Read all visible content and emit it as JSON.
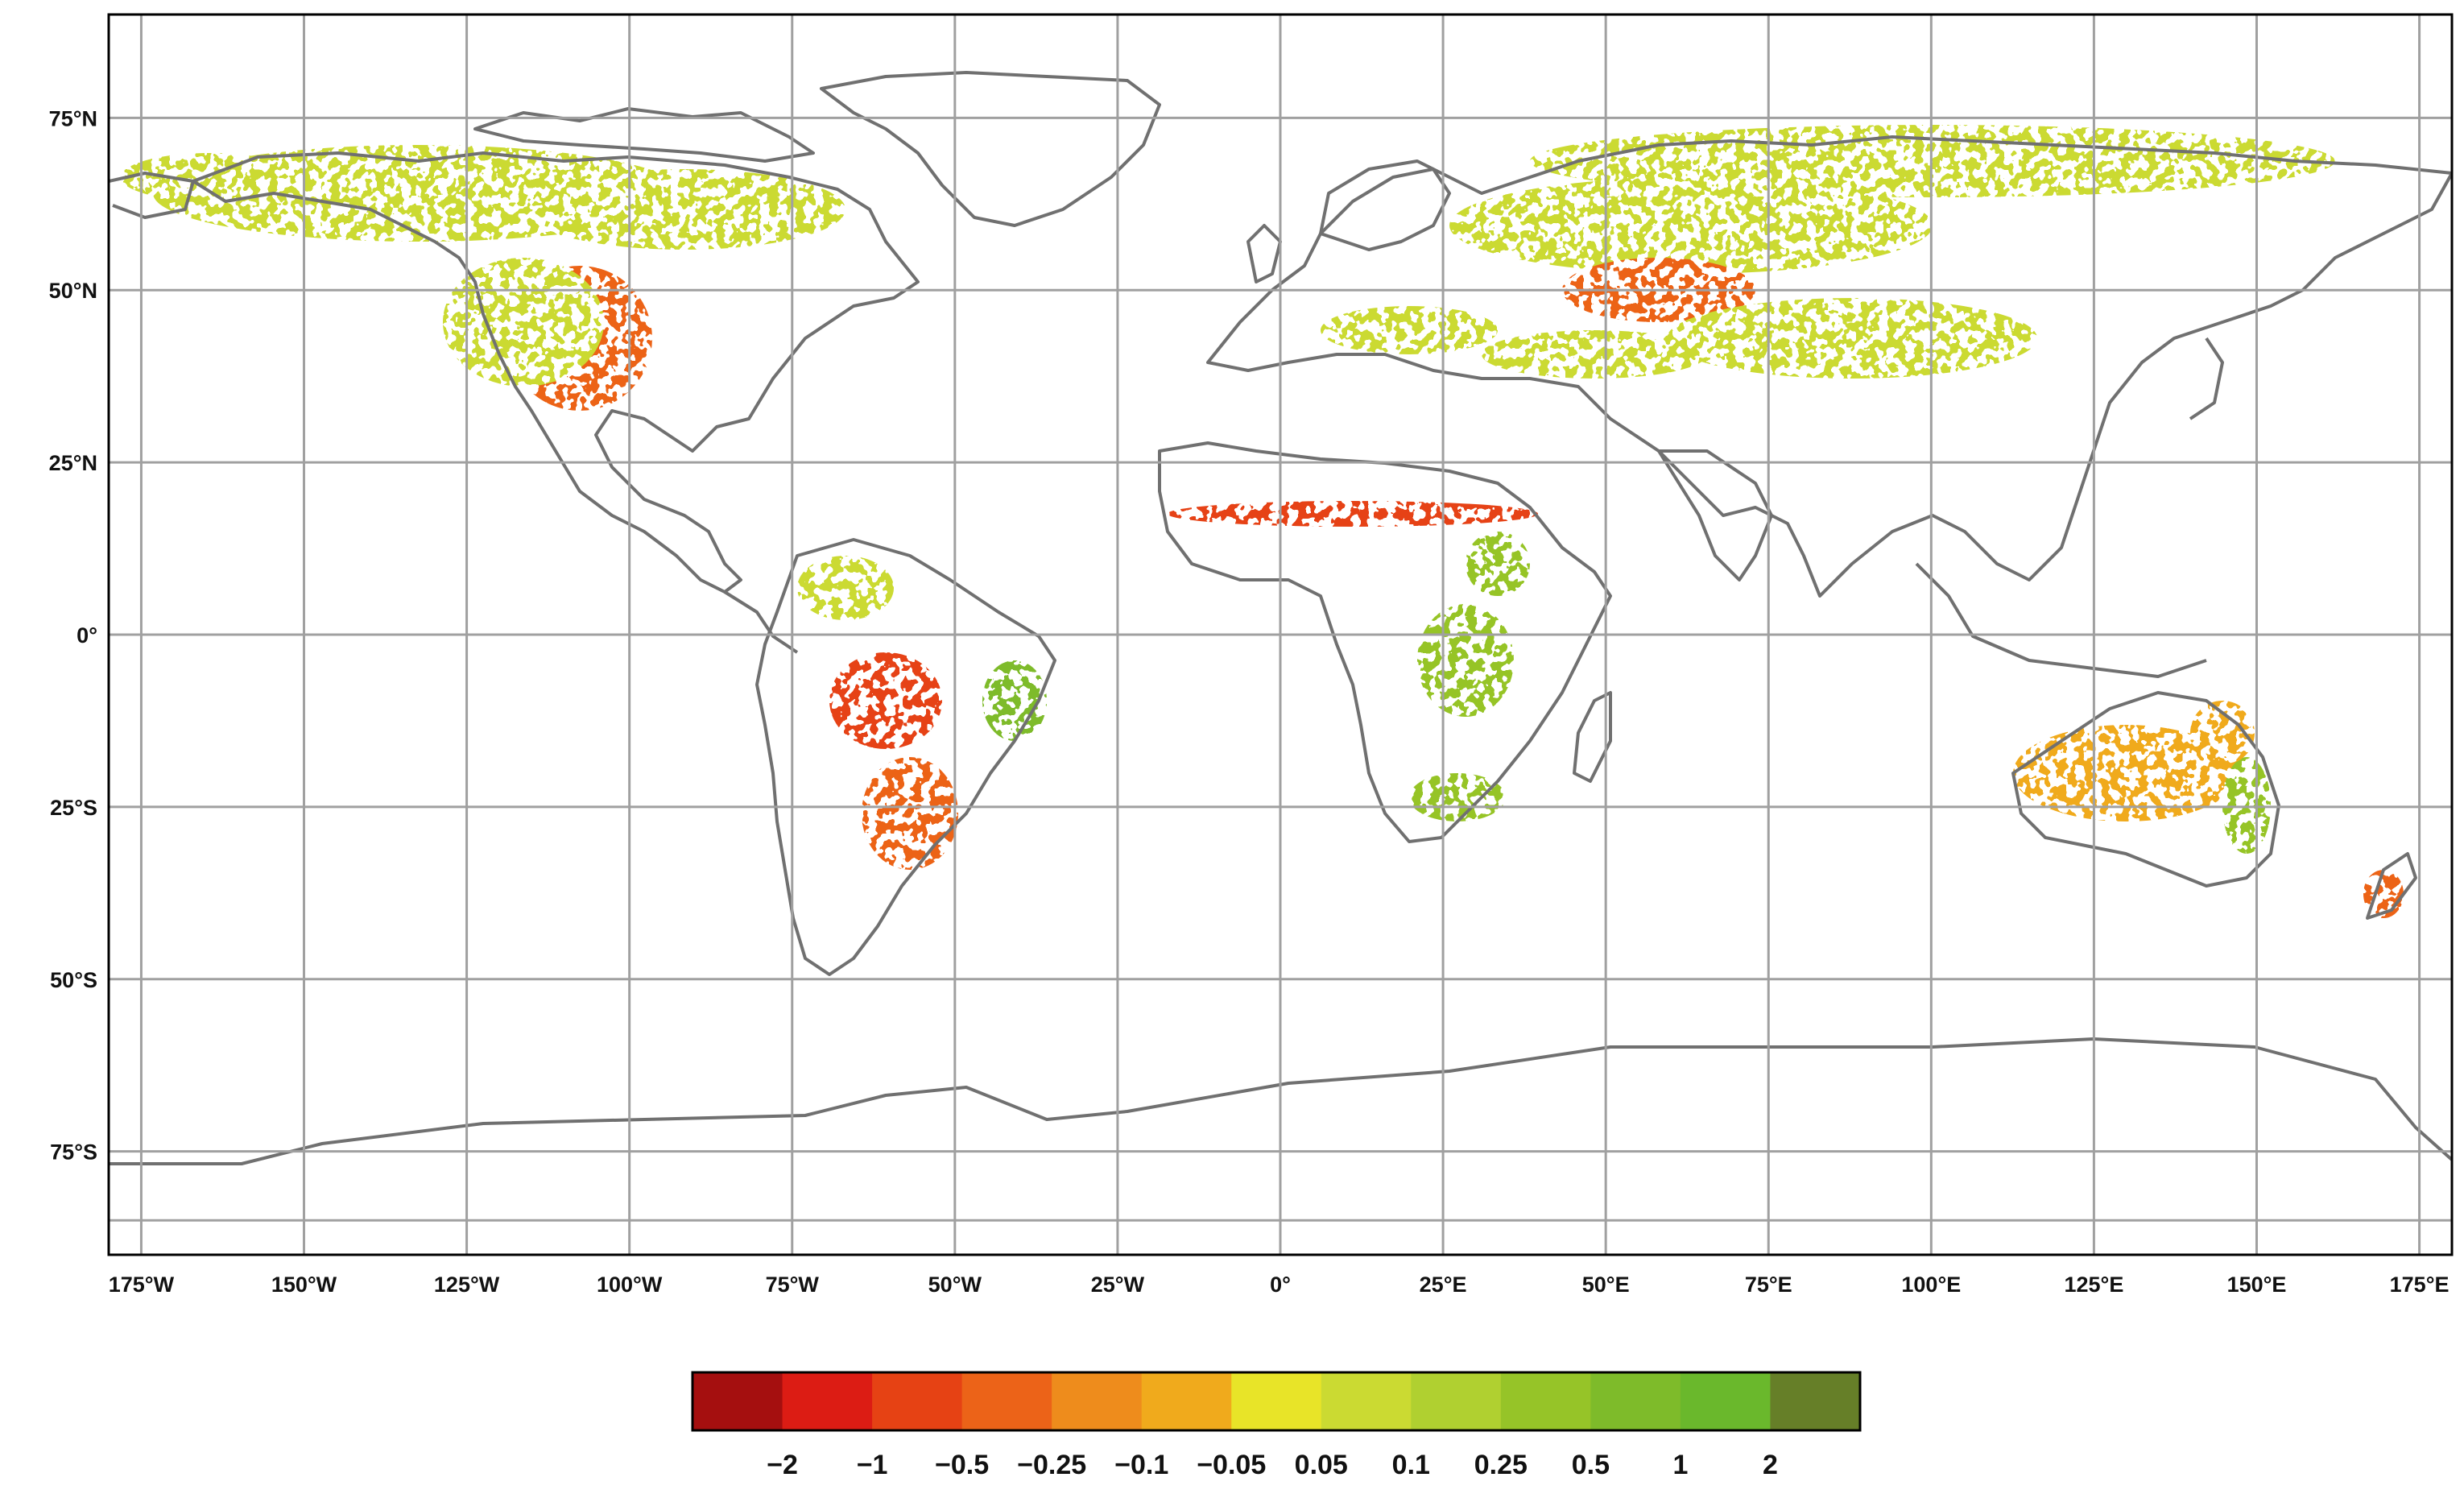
{
  "map": {
    "lat_ticks": [
      {
        "deg": 75,
        "label": "75°N"
      },
      {
        "deg": 50,
        "label": "50°N"
      },
      {
        "deg": 25,
        "label": "25°N"
      },
      {
        "deg": 0,
        "label": "0°"
      },
      {
        "deg": -25,
        "label": "25°S"
      },
      {
        "deg": -50,
        "label": "50°S"
      },
      {
        "deg": -75,
        "label": "75°S"
      }
    ],
    "lon_ticks": [
      {
        "deg": -175,
        "label": "175°W"
      },
      {
        "deg": -150,
        "label": "150°W"
      },
      {
        "deg": -125,
        "label": "125°W"
      },
      {
        "deg": -100,
        "label": "100°W"
      },
      {
        "deg": -75,
        "label": "75°W"
      },
      {
        "deg": -50,
        "label": "50°W"
      },
      {
        "deg": -25,
        "label": "25°W"
      },
      {
        "deg": 0,
        "label": "0°"
      },
      {
        "deg": 25,
        "label": "25°E"
      },
      {
        "deg": 50,
        "label": "50°E"
      },
      {
        "deg": 75,
        "label": "75°E"
      },
      {
        "deg": 100,
        "label": "100°E"
      },
      {
        "deg": 125,
        "label": "125°E"
      },
      {
        "deg": 150,
        "label": "150°E"
      },
      {
        "deg": 175,
        "label": "175°E"
      }
    ],
    "lon_range": [
      -180,
      180
    ],
    "lat_range": [
      -90,
      90
    ],
    "gridline_color": "#a0a0a0",
    "coastline_color": "#707070"
  },
  "colorbar": {
    "labels": [
      "−2",
      "−1",
      "−0.5",
      "−0.25",
      "−0.1",
      "−0.05",
      "0.05",
      "0.1",
      "0.25",
      "0.5",
      "1",
      "2"
    ],
    "colors": [
      "#a50f0f",
      "#dc1c14",
      "#e64214",
      "#ec6318",
      "#ee8c1c",
      "#f0aa1c",
      "#e8e428",
      "#cbda32",
      "#b0d030",
      "#96c428",
      "#7ebb2a",
      "#6ab82c",
      "#667f28"
    ]
  },
  "regions": [
    {
      "name": "north-america-boreal",
      "color": "#cbda32"
    },
    {
      "name": "us-great-plains",
      "color": "#ec6318"
    },
    {
      "name": "amazon-south",
      "color": "#e64214"
    },
    {
      "name": "east-brazil",
      "color": "#7ebb2a"
    },
    {
      "name": "sahel",
      "color": "#e64214"
    },
    {
      "name": "central-africa",
      "color": "#96c428"
    },
    {
      "name": "siberia",
      "color": "#cbda32"
    },
    {
      "name": "kazakh-steppe",
      "color": "#ec6318"
    },
    {
      "name": "australia-interior",
      "color": "#f0aa1c"
    },
    {
      "name": "australia-east",
      "color": "#96c428"
    }
  ]
}
